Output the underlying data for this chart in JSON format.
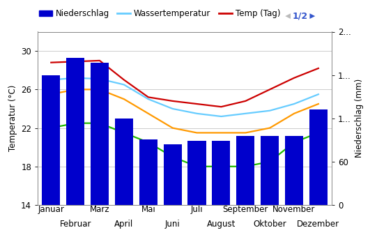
{
  "months": [
    "Januar",
    "Februar",
    "März",
    "April",
    "Mai",
    "Juni",
    "Juli",
    "August",
    "September",
    "Oktober",
    "November",
    "Dezember"
  ],
  "bar_values": [
    75,
    85,
    82,
    50,
    38,
    35,
    37,
    37,
    40,
    40,
    40,
    55
  ],
  "bar_color": "#0000cc",
  "temp_day": [
    28.8,
    28.9,
    29.0,
    27.0,
    25.2,
    24.8,
    24.5,
    24.2,
    24.8,
    26.0,
    27.2,
    28.2
  ],
  "wassertemp": [
    27.0,
    27.2,
    27.1,
    26.5,
    25.0,
    24.0,
    23.5,
    23.2,
    23.5,
    23.8,
    24.5,
    25.5
  ],
  "green_line": [
    22.0,
    22.5,
    22.5,
    21.5,
    20.5,
    19.0,
    18.0,
    18.0,
    18.0,
    18.5,
    20.5,
    21.5
  ],
  "orange_line": [
    25.5,
    26.0,
    26.0,
    25.0,
    23.5,
    22.0,
    21.5,
    21.5,
    21.5,
    22.0,
    23.5,
    24.5
  ],
  "temp_day_color": "#cc0000",
  "wassertemp_color": "#66ccff",
  "green_line_color": "#22bb00",
  "orange_line_color": "#ff9900",
  "ylim_left": [
    14,
    32
  ],
  "ylim_right": [
    0,
    100
  ],
  "yticks_left": [
    14,
    18,
    22,
    26,
    30
  ],
  "yticks_left_labels": [
    "14",
    "18",
    "22",
    "26",
    "30"
  ],
  "yticks_right": [
    0,
    25,
    50,
    75,
    100
  ],
  "yticks_right_labels": [
    "0",
    "60",
    "1...",
    "1...",
    "2..."
  ],
  "ylabel_left": "Temperatur (°C)",
  "ylabel_right": "Niederschlag (mm)",
  "bg_color": "#ffffff",
  "grid_color": "#cccccc",
  "legend_labels": [
    "Niederschlag",
    "Wassertemperatur",
    "Temp (Tag)"
  ],
  "axis_fontsize": 8.5,
  "tick_fontsize": 8.5
}
